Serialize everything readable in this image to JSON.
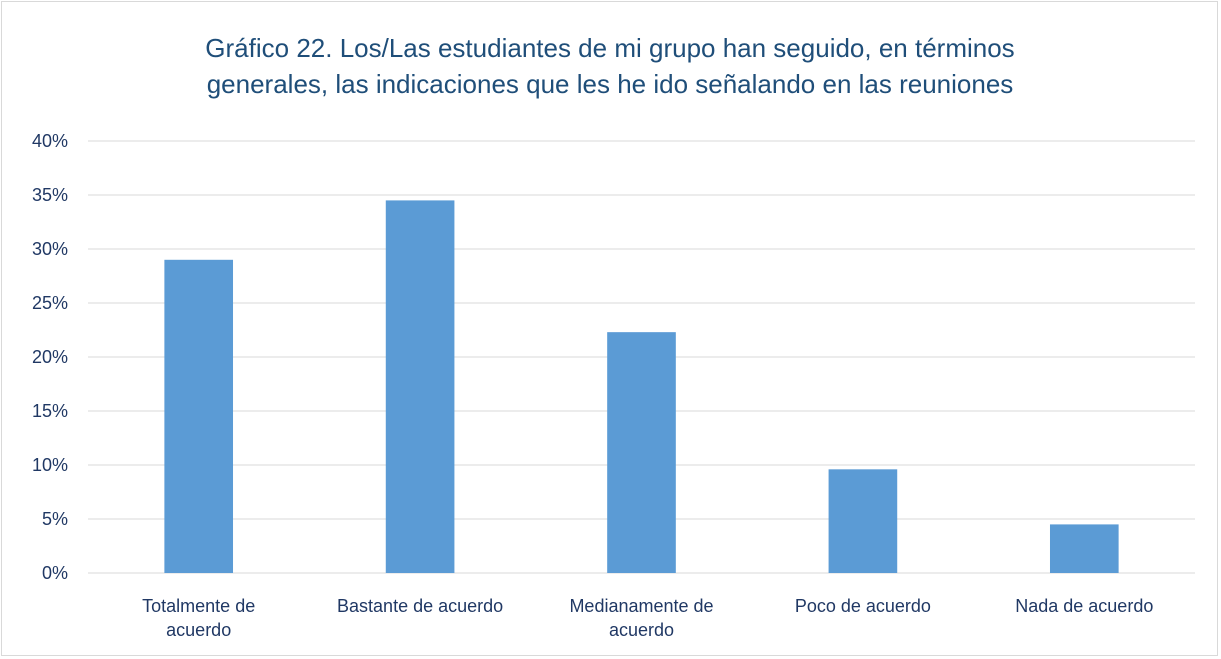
{
  "chart_data": {
    "type": "bar",
    "title": "Gráfico 22. Los/Las estudiantes de mi grupo han seguido, en términos generales, las indicaciones que les he ido señalando en las reuniones",
    "categories": [
      "Totalmente de acuerdo",
      "Bastante de acuerdo",
      "Medianamente de acuerdo",
      "Poco de acuerdo",
      "Nada de acuerdo"
    ],
    "values": [
      29,
      34.5,
      22.3,
      9.6,
      4.5
    ],
    "color": "#5b9bd5",
    "ylim": [
      0,
      40
    ],
    "yticks": [
      {
        "value": 0,
        "label": "0%"
      },
      {
        "value": 5,
        "label": "5%"
      },
      {
        "value": 10,
        "label": "10%"
      },
      {
        "value": 15,
        "label": "15%"
      },
      {
        "value": 20,
        "label": "20%"
      },
      {
        "value": 25,
        "label": "25%"
      },
      {
        "value": 30,
        "label": "30%"
      },
      {
        "value": 35,
        "label": "35%"
      },
      {
        "value": 40,
        "label": "40%"
      }
    ],
    "grid": true
  }
}
